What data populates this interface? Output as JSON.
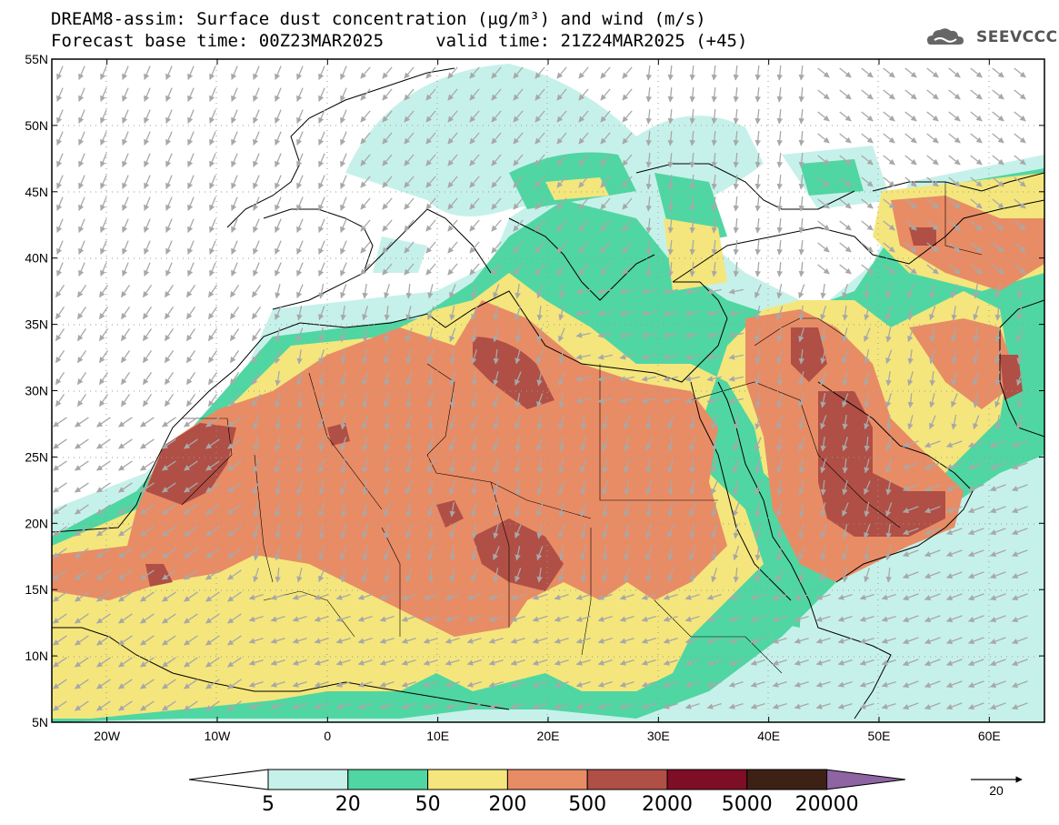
{
  "title": {
    "line1": "DREAM8-assim: Surface dust concentration (μg/m³) and wind (m/s)",
    "line2": "Forecast base time: 00Z23MAR2025     valid time: 21Z24MAR2025 (+45)"
  },
  "logo": {
    "text": "SEEVCCC",
    "icon": "cloud-icon"
  },
  "axes": {
    "lat_labels": [
      "55N",
      "50N",
      "45N",
      "40N",
      "35N",
      "30N",
      "25N",
      "20N",
      "15N",
      "10N",
      "5N"
    ],
    "lat_values": [
      55,
      50,
      45,
      40,
      35,
      30,
      25,
      20,
      15,
      10,
      5
    ],
    "lon_labels": [
      "20W",
      "10W",
      "0",
      "10E",
      "20E",
      "30E",
      "40E",
      "50E",
      "60E"
    ],
    "lon_values": [
      -20,
      -10,
      0,
      10,
      20,
      30,
      40,
      50,
      60
    ],
    "lon_range": [
      -25,
      65
    ],
    "lat_range": [
      5,
      55
    ]
  },
  "legend": {
    "labels": [
      "5",
      "20",
      "50",
      "200",
      "500",
      "2000",
      "5000",
      "20000"
    ],
    "colors": [
      "#c6f1ea",
      "#50d6a2",
      "#f4e67c",
      "#e88c66",
      "#b04f45",
      "#7e0e25",
      "#3e2115",
      "#8e64a2"
    ],
    "under_color": "#ffffff",
    "units": "μg/m³"
  },
  "wind_reference": {
    "value": "20",
    "unit": "m/s"
  },
  "colors": {
    "wind_arrow": "#a8a8a8",
    "coast": "#000000",
    "grid": "#9a9a9a"
  }
}
